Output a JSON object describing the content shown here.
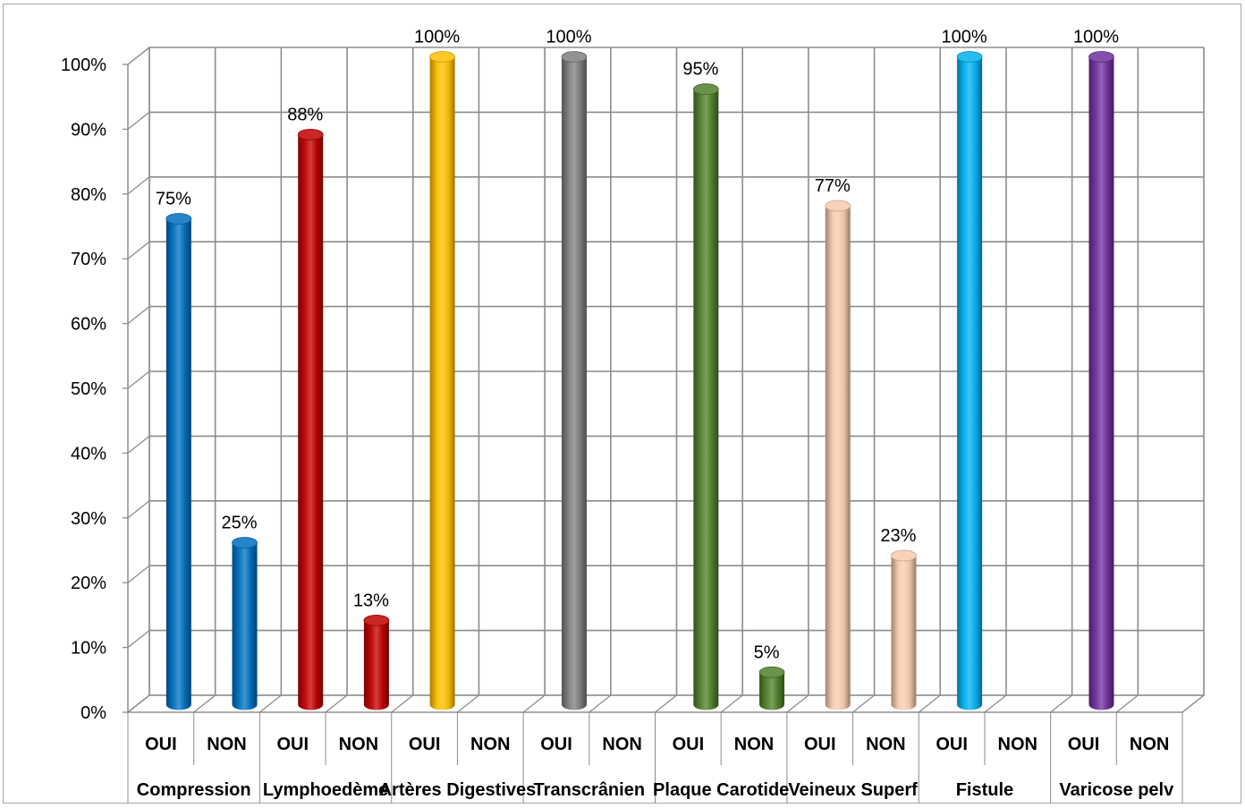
{
  "chart_data": {
    "type": "bar",
    "style": "3d-cylinder",
    "ylim": [
      0,
      1
    ],
    "ytick_labels": [
      "0%",
      "10%",
      "20%",
      "30%",
      "40%",
      "50%",
      "60%",
      "70%",
      "80%",
      "90%",
      "100%"
    ],
    "grid": true,
    "legend": "none",
    "subcategories": [
      "OUI",
      "NON"
    ],
    "groups": [
      {
        "name": "Compression",
        "color": "#0070c0",
        "values": [
          0.75,
          0.25
        ],
        "labels": [
          "75%",
          "25%"
        ]
      },
      {
        "name": "Lymphoedème",
        "color": "#c00000",
        "values": [
          0.88,
          0.13
        ],
        "labels": [
          "88%",
          "13%"
        ]
      },
      {
        "name": "Artères Digestives",
        "color": "#ffc000",
        "values": [
          1.0,
          0
        ],
        "labels": [
          "100%",
          ""
        ]
      },
      {
        "name": "Transcrânien",
        "color": "#7f7f7f",
        "values": [
          1.0,
          0
        ],
        "labels": [
          "100%",
          ""
        ]
      },
      {
        "name": "Plaque Carotide",
        "color": "#4f7f2a",
        "values": [
          0.95,
          0.05
        ],
        "labels": [
          "95%",
          "5%"
        ]
      },
      {
        "name": "Veineux Superf",
        "color": "#f8cbad",
        "values": [
          0.77,
          0.23
        ],
        "labels": [
          "77%",
          "23%"
        ]
      },
      {
        "name": "Fistule",
        "color": "#00b0f0",
        "values": [
          1.0,
          0
        ],
        "labels": [
          "100%",
          ""
        ]
      },
      {
        "name": "Varicose pelv",
        "color": "#7030a0",
        "values": [
          1.0,
          0
        ],
        "labels": [
          "100%",
          ""
        ]
      }
    ]
  }
}
